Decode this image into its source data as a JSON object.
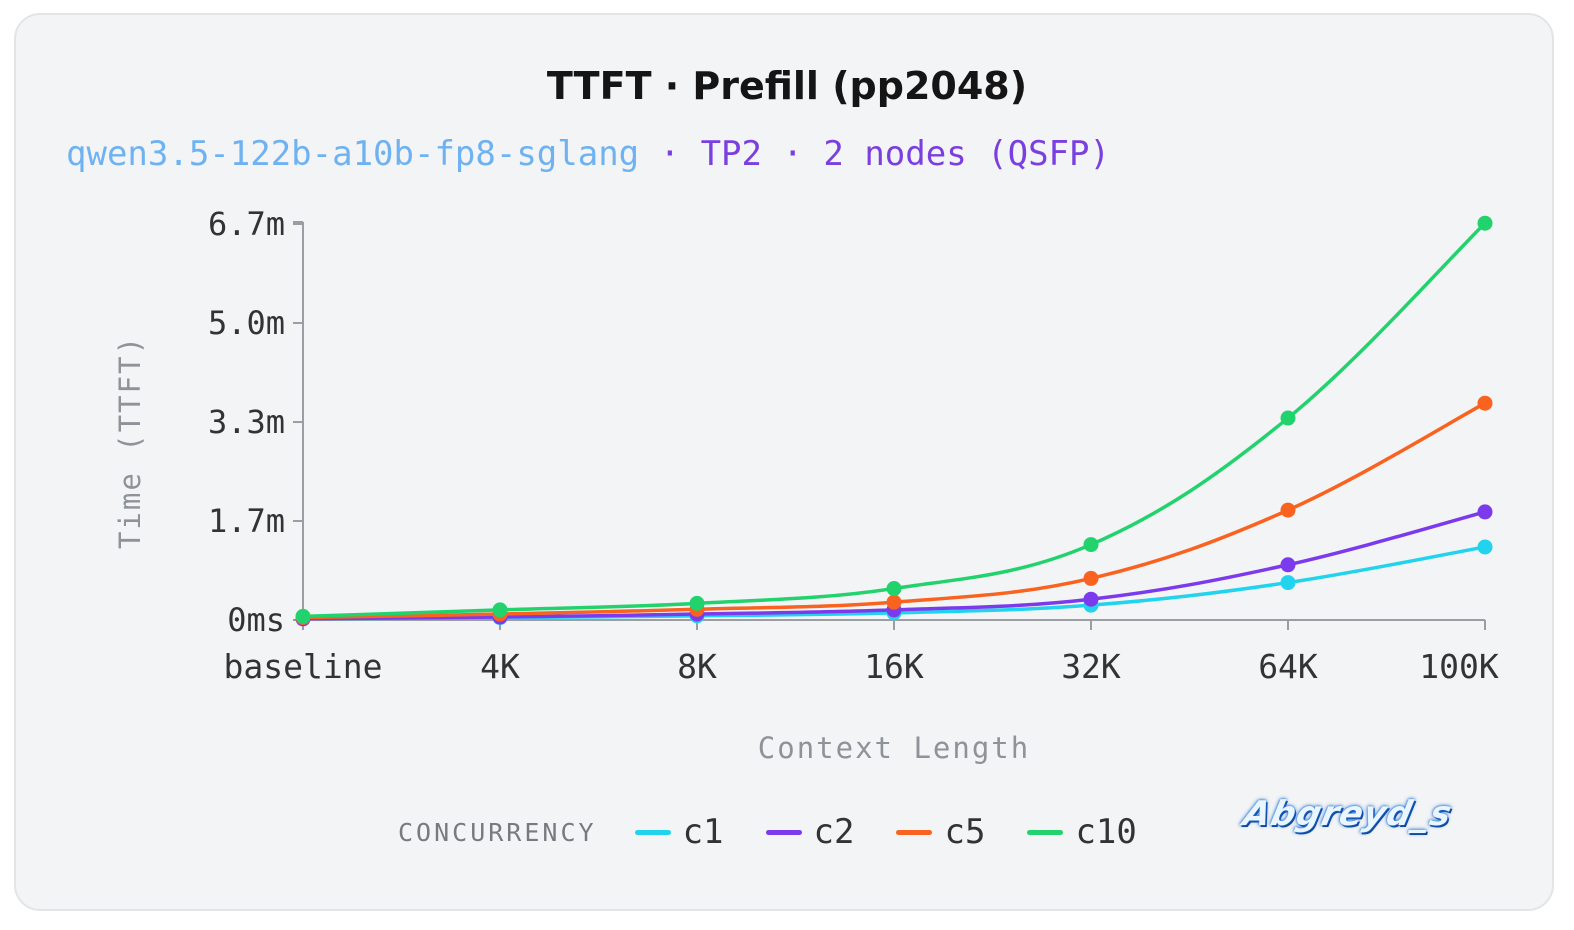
{
  "title": "TTFT · Prefill (pp2048)",
  "subtitle": {
    "model": "qwen3.5-122b-a10b-fp8-sglang",
    "rest": " · TP2 · 2 nodes (QSFP)"
  },
  "legend": {
    "title": "CONCURRENCY"
  },
  "watermark": "Abgreyd_s",
  "chart_data": {
    "type": "line",
    "title": "TTFT · Prefill (pp2048)",
    "xlabel": "Context Length",
    "ylabel": "Time (TTFT)",
    "categories": [
      "baseline",
      "4K",
      "8K",
      "16K",
      "32K",
      "64K",
      "100K"
    ],
    "y_ticks": [
      {
        "value": 0,
        "label": "0ms"
      },
      {
        "value": 1.667,
        "label": "1.7m"
      },
      {
        "value": 3.333,
        "label": "3.3m"
      },
      {
        "value": 5.0,
        "label": "5.0m"
      },
      {
        "value": 6.667,
        "label": "6.7m"
      }
    ],
    "ylim": [
      0,
      6.667
    ],
    "y_unit": "minutes",
    "grid": false,
    "legend_position": "bottom",
    "series": [
      {
        "name": "c1",
        "color": "#22d3ee",
        "values": [
          0.02,
          0.04,
          0.07,
          0.12,
          0.25,
          0.63,
          1.23
        ]
      },
      {
        "name": "c2",
        "color": "#7c3aed",
        "values": [
          0.02,
          0.05,
          0.1,
          0.17,
          0.35,
          0.93,
          1.82
        ]
      },
      {
        "name": "c5",
        "color": "#f9621f",
        "values": [
          0.04,
          0.1,
          0.18,
          0.3,
          0.7,
          1.85,
          3.65
        ]
      },
      {
        "name": "c10",
        "color": "#22d36d",
        "values": [
          0.06,
          0.17,
          0.28,
          0.53,
          1.27,
          3.4,
          6.68
        ]
      }
    ]
  }
}
